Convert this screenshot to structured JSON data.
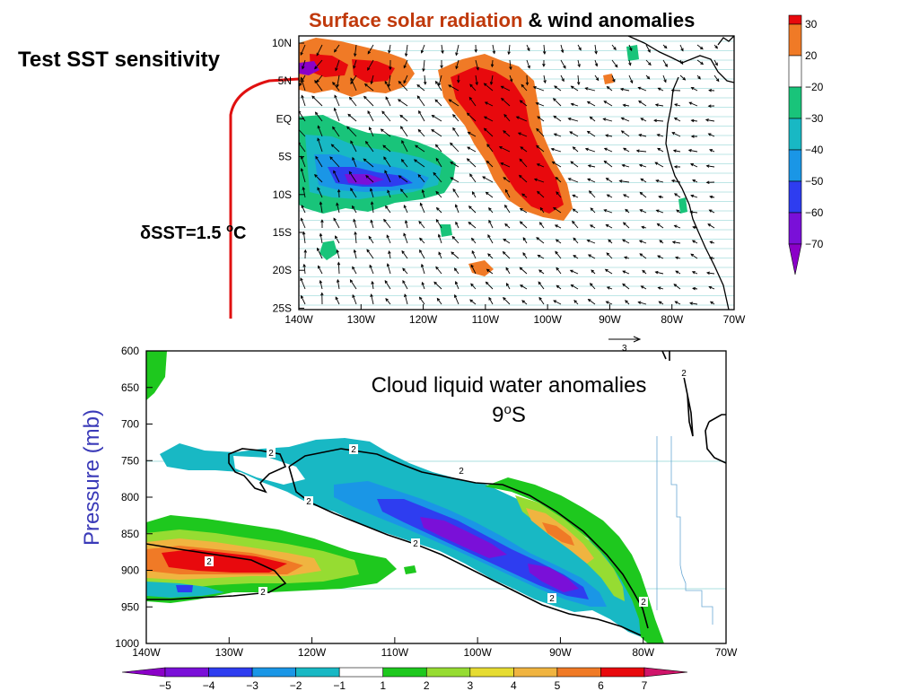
{
  "slide": {
    "side_title": "Test SST sensitivity",
    "dsst_symbol": "δ",
    "dsst_text": "SST=1.5 ",
    "dsst_deg": "o",
    "dsst_unit": "C"
  },
  "top_panel": {
    "title_part1": "Surface solar radiation",
    "title_part2": " & wind anomalies",
    "title_color1": "#c0390b",
    "lat_labels": [
      "10N",
      "5N",
      "EQ",
      "5S",
      "10S",
      "15S",
      "20S",
      "25S"
    ],
    "lon_labels": [
      "140W",
      "130W",
      "120W",
      "110W",
      "100W",
      "90W",
      "80W",
      "70W"
    ],
    "vector_ref_label": "3",
    "colorbar": {
      "labels": [
        "30",
        "20",
        "−20",
        "−30",
        "−40",
        "−50",
        "−60",
        "−70"
      ],
      "colors": [
        "#e8090d",
        "#f07a26",
        "#ffffff",
        "#19c47a",
        "#18b8c4",
        "#1a96e6",
        "#2e3df0",
        "#7a10d8",
        "#8b00c8"
      ]
    }
  },
  "bottom_panel": {
    "title_line1": "Cloud liquid water anomalies",
    "title_line2_pre": "9",
    "title_line2_sup": "o",
    "title_line2_post": "S",
    "ylabel": "Pressure (mb)",
    "ylabel_color": "#3a3ab8",
    "p_labels": [
      "600",
      "650",
      "700",
      "750",
      "800",
      "850",
      "900",
      "950",
      "1000"
    ],
    "lon_labels": [
      "140W",
      "130W",
      "120W",
      "110W",
      "100W",
      "90W",
      "80W",
      "70W"
    ],
    "contour_label": "2",
    "colorbar": {
      "labels": [
        "−5",
        "−4",
        "−3",
        "−2",
        "−1",
        "1",
        "2",
        "3",
        "4",
        "5",
        "6",
        "7"
      ],
      "colors": [
        "#8b00c8",
        "#7a10d8",
        "#2e3df0",
        "#1a96e6",
        "#18b8c4",
        "#ffffff",
        "#1ec81e",
        "#96dc32",
        "#e6dc32",
        "#f0b440",
        "#f07a26",
        "#e8090d",
        "#d0146a"
      ]
    }
  }
}
